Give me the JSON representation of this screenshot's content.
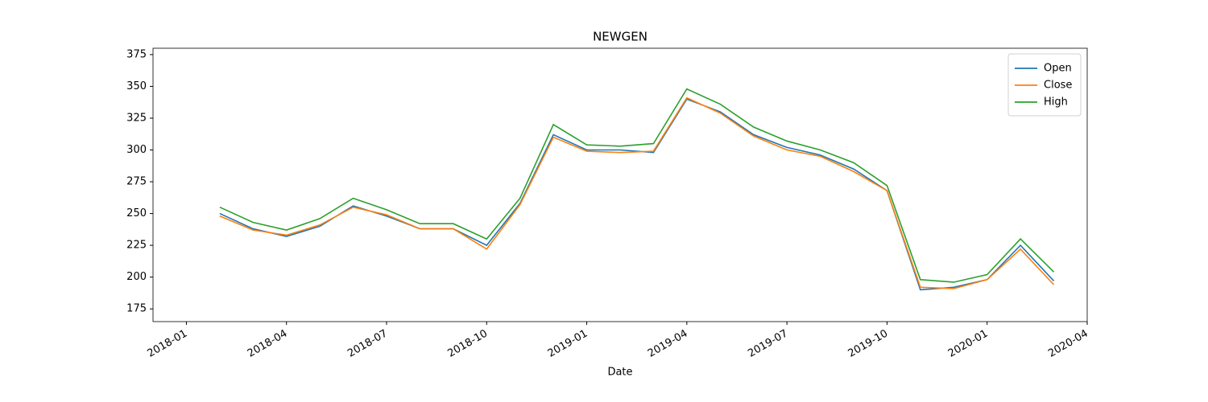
{
  "chart_data": {
    "type": "line",
    "title": "NEWGEN",
    "xlabel": "Date",
    "x": [
      "2018-02",
      "2018-03",
      "2018-04",
      "2018-05",
      "2018-06",
      "2018-07",
      "2018-08",
      "2018-09",
      "2018-10",
      "2018-11",
      "2018-12",
      "2019-01",
      "2019-02",
      "2019-03",
      "2019-04",
      "2019-05",
      "2019-06",
      "2019-07",
      "2019-08",
      "2019-09",
      "2019-10",
      "2019-11",
      "2019-12",
      "2020-01",
      "2020-02",
      "2020-03"
    ],
    "series": [
      {
        "name": "Open",
        "color": "#1f77b4",
        "values": [
          250,
          238,
          232,
          240,
          256,
          248,
          238,
          238,
          225,
          258,
          312,
          300,
          300,
          298,
          340,
          330,
          312,
          302,
          296,
          285,
          268,
          190,
          192,
          198,
          225,
          197
        ]
      },
      {
        "name": "Close",
        "color": "#ff7f0e",
        "values": [
          248,
          237,
          233,
          241,
          255,
          249,
          238,
          238,
          222,
          257,
          310,
          299,
          298,
          299,
          341,
          329,
          311,
          300,
          295,
          283,
          268,
          192,
          191,
          198,
          222,
          194
        ]
      },
      {
        "name": "High",
        "color": "#2ca02c",
        "values": [
          255,
          243,
          237,
          246,
          262,
          253,
          242,
          242,
          230,
          262,
          320,
          304,
          303,
          305,
          348,
          336,
          318,
          307,
          300,
          290,
          272,
          198,
          196,
          202,
          230,
          204
        ]
      }
    ],
    "xlim": [
      "2017-12",
      "2020-04"
    ],
    "xticks": [
      "2018-01",
      "2018-04",
      "2018-07",
      "2018-10",
      "2019-01",
      "2019-04",
      "2019-07",
      "2019-10",
      "2020-01",
      "2020-04"
    ],
    "ylim": [
      165,
      380
    ],
    "yticks": [
      175,
      200,
      225,
      250,
      275,
      300,
      325,
      350,
      375
    ],
    "legend": "upper right"
  }
}
